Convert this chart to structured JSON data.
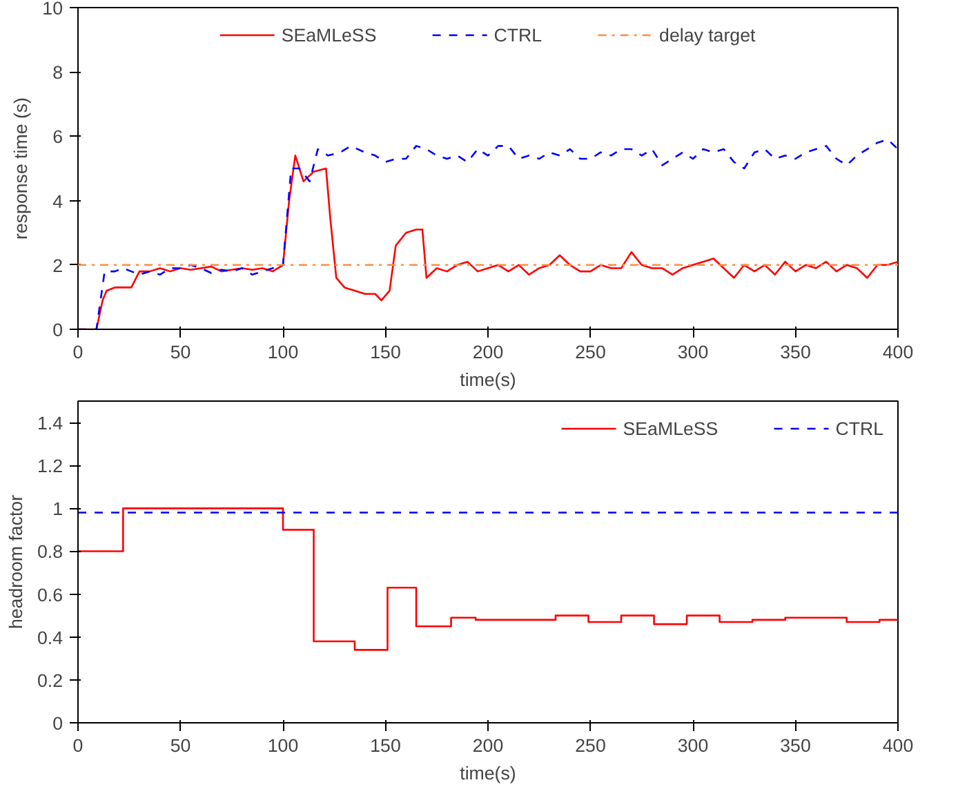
{
  "chart_data": [
    {
      "type": "line",
      "xlabel": "time(s)",
      "ylabel": "response time (s)",
      "xlim": [
        0,
        400
      ],
      "ylim": [
        0,
        10
      ],
      "xticks": [
        0,
        50,
        100,
        150,
        200,
        250,
        300,
        350,
        400
      ],
      "yticks": [
        0,
        2,
        4,
        6,
        8,
        10
      ],
      "grid": false,
      "legend": "top",
      "series": [
        {
          "name": "SEaMLeSS",
          "color": "#ff0000",
          "line_style": "solid",
          "x": [
            0,
            9,
            12,
            14,
            18,
            22,
            26,
            30,
            35,
            40,
            45,
            50,
            55,
            60,
            65,
            70,
            75,
            80,
            85,
            90,
            95,
            100,
            103,
            106,
            110,
            115,
            121,
            123,
            126,
            130,
            135,
            140,
            145,
            148,
            152,
            155,
            160,
            165,
            168,
            170,
            175,
            180,
            185,
            190,
            195,
            200,
            205,
            210,
            215,
            220,
            225,
            230,
            235,
            240,
            245,
            250,
            255,
            260,
            265,
            270,
            275,
            280,
            285,
            290,
            295,
            300,
            305,
            310,
            315,
            320,
            325,
            330,
            335,
            340,
            345,
            350,
            355,
            360,
            365,
            370,
            375,
            380,
            385,
            390,
            395,
            400
          ],
          "values": [
            0,
            0,
            0.9,
            1.2,
            1.3,
            1.3,
            1.3,
            1.8,
            1.8,
            1.9,
            1.8,
            1.9,
            1.85,
            1.9,
            1.95,
            1.8,
            1.85,
            1.9,
            1.85,
            1.9,
            1.8,
            2.0,
            4.0,
            5.4,
            4.6,
            4.9,
            5.0,
            3.5,
            1.6,
            1.3,
            1.2,
            1.1,
            1.1,
            0.9,
            1.2,
            2.6,
            3.0,
            3.1,
            3.1,
            1.6,
            1.9,
            1.8,
            2.0,
            2.1,
            1.8,
            1.9,
            2.0,
            1.8,
            2.0,
            1.7,
            1.9,
            2.0,
            2.3,
            2.0,
            1.8,
            1.8,
            2.0,
            1.9,
            1.9,
            2.4,
            2.0,
            1.9,
            1.9,
            1.7,
            1.9,
            2.0,
            2.1,
            2.2,
            1.9,
            1.6,
            2.0,
            1.8,
            2.0,
            1.7,
            2.1,
            1.8,
            2.0,
            1.9,
            2.1,
            1.8,
            2.0,
            1.9,
            1.6,
            2.0,
            2.0,
            2.1
          ]
        },
        {
          "name": "CTRL",
          "color": "#0000ff",
          "line_style": "dashed",
          "x": [
            0,
            9,
            13,
            18,
            22,
            26,
            30,
            35,
            40,
            45,
            50,
            55,
            60,
            65,
            70,
            75,
            80,
            85,
            90,
            95,
            100,
            104,
            108,
            113,
            117,
            122,
            128,
            133,
            140,
            145,
            150,
            155,
            160,
            165,
            170,
            175,
            180,
            185,
            190,
            195,
            200,
            205,
            210,
            215,
            220,
            225,
            230,
            235,
            240,
            245,
            250,
            255,
            260,
            265,
            270,
            275,
            280,
            285,
            290,
            295,
            300,
            305,
            310,
            315,
            320,
            325,
            330,
            335,
            340,
            345,
            350,
            355,
            360,
            365,
            370,
            375,
            380,
            385,
            390,
            395,
            400
          ],
          "values": [
            0,
            0,
            1.8,
            1.8,
            1.9,
            1.8,
            1.7,
            1.8,
            1.7,
            1.9,
            1.9,
            2.0,
            1.9,
            1.75,
            1.85,
            1.8,
            1.9,
            1.7,
            1.8,
            1.9,
            2.0,
            5.0,
            5.0,
            4.6,
            5.6,
            5.4,
            5.5,
            5.7,
            5.5,
            5.4,
            5.2,
            5.3,
            5.3,
            5.7,
            5.6,
            5.4,
            5.3,
            5.4,
            5.2,
            5.6,
            5.4,
            5.7,
            5.7,
            5.3,
            5.4,
            5.3,
            5.5,
            5.4,
            5.6,
            5.3,
            5.3,
            5.5,
            5.4,
            5.6,
            5.6,
            5.4,
            5.6,
            5.1,
            5.3,
            5.5,
            5.3,
            5.6,
            5.5,
            5.6,
            5.2,
            5.0,
            5.5,
            5.6,
            5.3,
            5.4,
            5.3,
            5.5,
            5.6,
            5.7,
            5.3,
            5.1,
            5.4,
            5.6,
            5.8,
            5.9,
            5.6
          ]
        }
      ],
      "ref_lines": [
        {
          "axis": "y",
          "value": 2,
          "label": "delay target",
          "color": "#ff8c40",
          "line_style": "dashdot"
        }
      ]
    },
    {
      "type": "step",
      "xlabel": "time(s)",
      "ylabel": "headroom factor",
      "xlim": [
        0,
        400
      ],
      "ylim": [
        0,
        1.5
      ],
      "xticks": [
        0,
        50,
        100,
        150,
        200,
        250,
        300,
        350,
        400
      ],
      "yticks": [
        0,
        0.2,
        0.4,
        0.6,
        0.8,
        1,
        1.2,
        1.4
      ],
      "grid": false,
      "legend": "top right",
      "series": [
        {
          "name": "SEaMLeSS",
          "color": "#ff0000",
          "line_style": "solid",
          "x": [
            0,
            22,
            100,
            115,
            135,
            151,
            165,
            182,
            194,
            233,
            249,
            265,
            281,
            297,
            313,
            329,
            345,
            375,
            391,
            400
          ],
          "values": [
            0.8,
            1.0,
            0.9,
            0.38,
            0.34,
            0.63,
            0.45,
            0.49,
            0.48,
            0.5,
            0.47,
            0.5,
            0.46,
            0.5,
            0.47,
            0.48,
            0.49,
            0.47,
            0.48,
            0.48
          ]
        },
        {
          "name": "CTRL",
          "color": "#0000ff",
          "line_style": "dashed",
          "x": [
            0,
            400
          ],
          "values": [
            0.98,
            0.98
          ]
        }
      ]
    }
  ]
}
